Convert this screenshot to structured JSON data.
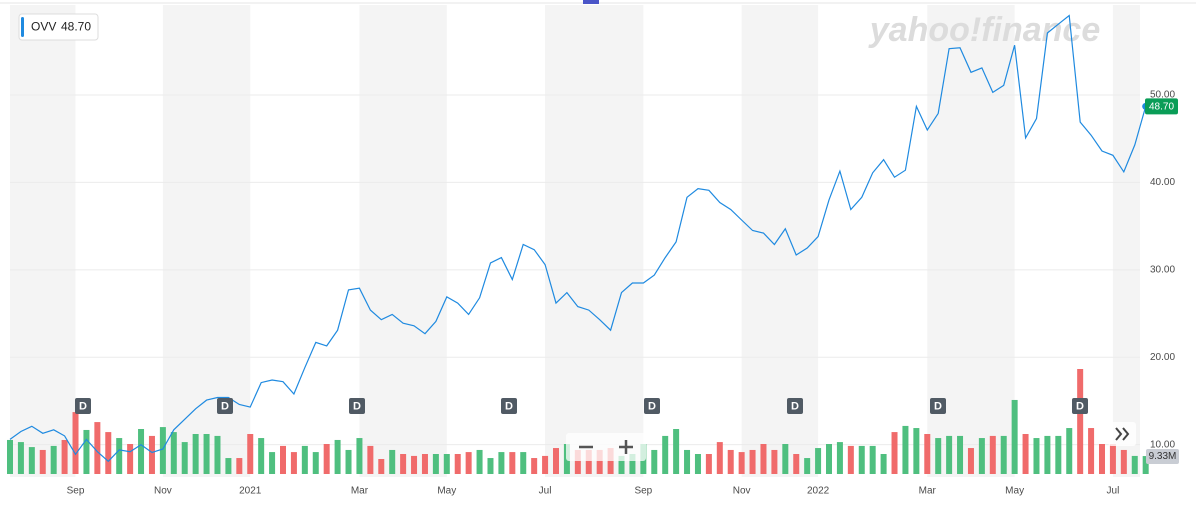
{
  "chart_data": {
    "type": "line",
    "symbol": "OVV",
    "watermark": "yahoo!finance",
    "categories": [
      null,
      null,
      null,
      null,
      null,
      null,
      "Sep",
      null,
      null,
      null,
      null,
      null,
      null,
      null,
      "Nov",
      null,
      null,
      null,
      null,
      null,
      null,
      null,
      "2021",
      null,
      null,
      null,
      null,
      null,
      null,
      null,
      null,
      null,
      "Mar",
      null,
      null,
      null,
      null,
      null,
      null,
      null,
      "May",
      null,
      null,
      null,
      null,
      null,
      null,
      null,
      null,
      "Jul",
      null,
      null,
      null,
      null,
      null,
      null,
      null,
      null,
      "Sep",
      null,
      null,
      null,
      null,
      null,
      null,
      null,
      null,
      "Nov",
      null,
      null,
      null,
      null,
      null,
      null,
      "2022",
      null,
      null,
      null,
      null,
      null,
      null,
      null,
      null,
      null,
      "Mar",
      null,
      null,
      null,
      null,
      null,
      null,
      null,
      "May",
      null,
      null,
      null,
      null,
      null,
      null,
      null,
      null,
      "Jul",
      null,
      null,
      null
    ],
    "series": [
      {
        "name": "OVV",
        "color": "#1f8ae0",
        "values": [
          10.6,
          11.5,
          12.1,
          11.3,
          11.7,
          11.0,
          8.9,
          10.6,
          9.2,
          8.1,
          9.4,
          9.2,
          10.0,
          9.1,
          9.5,
          11.7,
          12.9,
          14.1,
          15.1,
          15.4,
          15.4,
          14.6,
          14.3,
          17.1,
          17.4,
          17.2,
          15.8,
          18.8,
          21.7,
          21.3,
          23.1,
          27.7,
          27.9,
          25.4,
          24.3,
          24.9,
          23.9,
          23.6,
          22.7,
          24.1,
          26.9,
          26.2,
          24.9,
          26.8,
          30.8,
          31.4,
          28.9,
          32.9,
          32.3,
          30.6,
          26.2,
          27.4,
          25.8,
          25.4,
          24.3,
          23.1,
          27.4,
          28.5,
          28.5,
          29.4,
          31.4,
          33.2,
          38.3,
          39.3,
          39.1,
          37.7,
          36.9,
          35.7,
          34.5,
          34.2,
          32.9,
          34.7,
          31.7,
          32.5,
          33.8,
          38.0,
          41.3,
          36.9,
          38.3,
          41.1,
          42.6,
          40.6,
          41.4,
          48.7,
          46.0,
          47.9,
          55.3,
          55.4,
          52.6,
          53.1,
          50.3,
          51.1,
          55.7,
          45.1,
          47.3,
          57.1,
          58.1,
          59.1,
          46.9,
          45.4,
          43.6,
          43.1,
          41.2,
          44.3,
          48.7
        ],
        "value_labels": [
          null,
          null,
          null,
          null,
          null,
          null,
          null,
          null,
          null,
          null,
          null,
          null,
          null,
          null,
          null,
          null,
          null,
          null,
          null,
          null,
          null,
          null,
          null,
          null,
          null,
          null,
          null,
          null,
          null,
          null,
          null,
          null,
          null,
          null,
          null,
          null,
          null,
          null,
          null,
          null,
          null,
          null,
          null,
          null,
          null,
          null,
          null,
          null,
          null,
          null,
          null,
          null,
          null,
          null,
          null,
          null,
          null,
          null,
          null,
          null,
          null,
          null,
          null,
          null,
          null,
          null,
          null,
          null,
          null,
          null,
          null,
          null,
          null,
          null,
          null,
          null,
          null,
          null,
          null,
          null,
          null,
          null,
          null,
          null,
          null,
          null,
          null,
          null,
          null,
          null,
          null,
          null,
          null,
          null,
          null,
          null,
          null,
          null,
          null,
          null,
          null,
          null,
          null,
          null,
          "48.70"
        ]
      }
    ],
    "volume": {
      "up_color": "#4fbf7f",
      "down_color": "#f06b6b",
      "values": [
        17.7,
        16.6,
        14.0,
        12.5,
        14.6,
        17.7,
        32.2,
        22.9,
        27.0,
        21.8,
        18.7,
        15.6,
        23.4,
        19.8,
        24.4,
        21.8,
        16.6,
        20.8,
        20.8,
        19.8,
        8.3,
        8.3,
        20.8,
        18.7,
        11.4,
        14.6,
        11.4,
        14.6,
        11.4,
        15.6,
        17.7,
        12.5,
        18.7,
        14.6,
        7.8,
        12.5,
        10.4,
        9.4,
        10.4,
        10.4,
        10.4,
        10.4,
        11.4,
        12.5,
        8.3,
        11.4,
        11.4,
        11.4,
        8.3,
        9.4,
        13.5,
        15.6,
        12.5,
        12.5,
        12.5,
        13.5,
        9.4,
        10.4,
        15.6,
        12.5,
        19.8,
        23.4,
        12.5,
        10.4,
        10.4,
        16.6,
        12.5,
        11.4,
        12.5,
        15.6,
        12.5,
        15.6,
        10.4,
        8.3,
        13.5,
        15.6,
        16.6,
        14.6,
        14.6,
        14.6,
        10.4,
        21.8,
        25.0,
        23.9,
        20.8,
        18.7,
        19.8,
        19.8,
        13.5,
        18.7,
        19.8,
        19.8,
        38.5,
        20.8,
        18.7,
        19.8,
        19.8,
        23.9,
        54.6,
        23.9,
        15.6,
        15.6,
        12.5,
        9.4,
        9.33
      ],
      "value_labels": [
        null,
        null,
        null,
        null,
        null,
        null,
        null,
        null,
        null,
        null,
        null,
        null,
        null,
        null,
        null,
        null,
        null,
        null,
        null,
        null,
        null,
        null,
        null,
        null,
        null,
        null,
        null,
        null,
        null,
        null,
        null,
        null,
        null,
        null,
        null,
        null,
        null,
        null,
        null,
        null,
        null,
        null,
        null,
        null,
        null,
        null,
        null,
        null,
        null,
        null,
        null,
        null,
        null,
        null,
        null,
        null,
        null,
        null,
        null,
        null,
        null,
        null,
        null,
        null,
        null,
        null,
        null,
        null,
        null,
        null,
        null,
        null,
        null,
        null,
        null,
        null,
        null,
        null,
        null,
        null,
        null,
        null,
        null,
        null,
        null,
        null,
        null,
        null,
        null,
        null,
        null,
        null,
        null,
        null,
        null,
        null,
        null,
        null,
        null,
        null,
        null,
        null,
        null,
        null,
        "9.33M"
      ]
    },
    "dividend_markers": [
      "D",
      "D",
      "D",
      "D",
      "D",
      "D",
      "D",
      "D"
    ],
    "ylim": [
      6.3,
      60.3
    ],
    "yticks": [
      {
        "value": 10,
        "label": "10.00"
      },
      {
        "value": 20,
        "label": "20.00"
      },
      {
        "value": 30,
        "label": "30.00"
      },
      {
        "value": 40,
        "label": "40.00"
      },
      {
        "value": 50,
        "label": "50.00"
      }
    ],
    "grid": true
  }
}
